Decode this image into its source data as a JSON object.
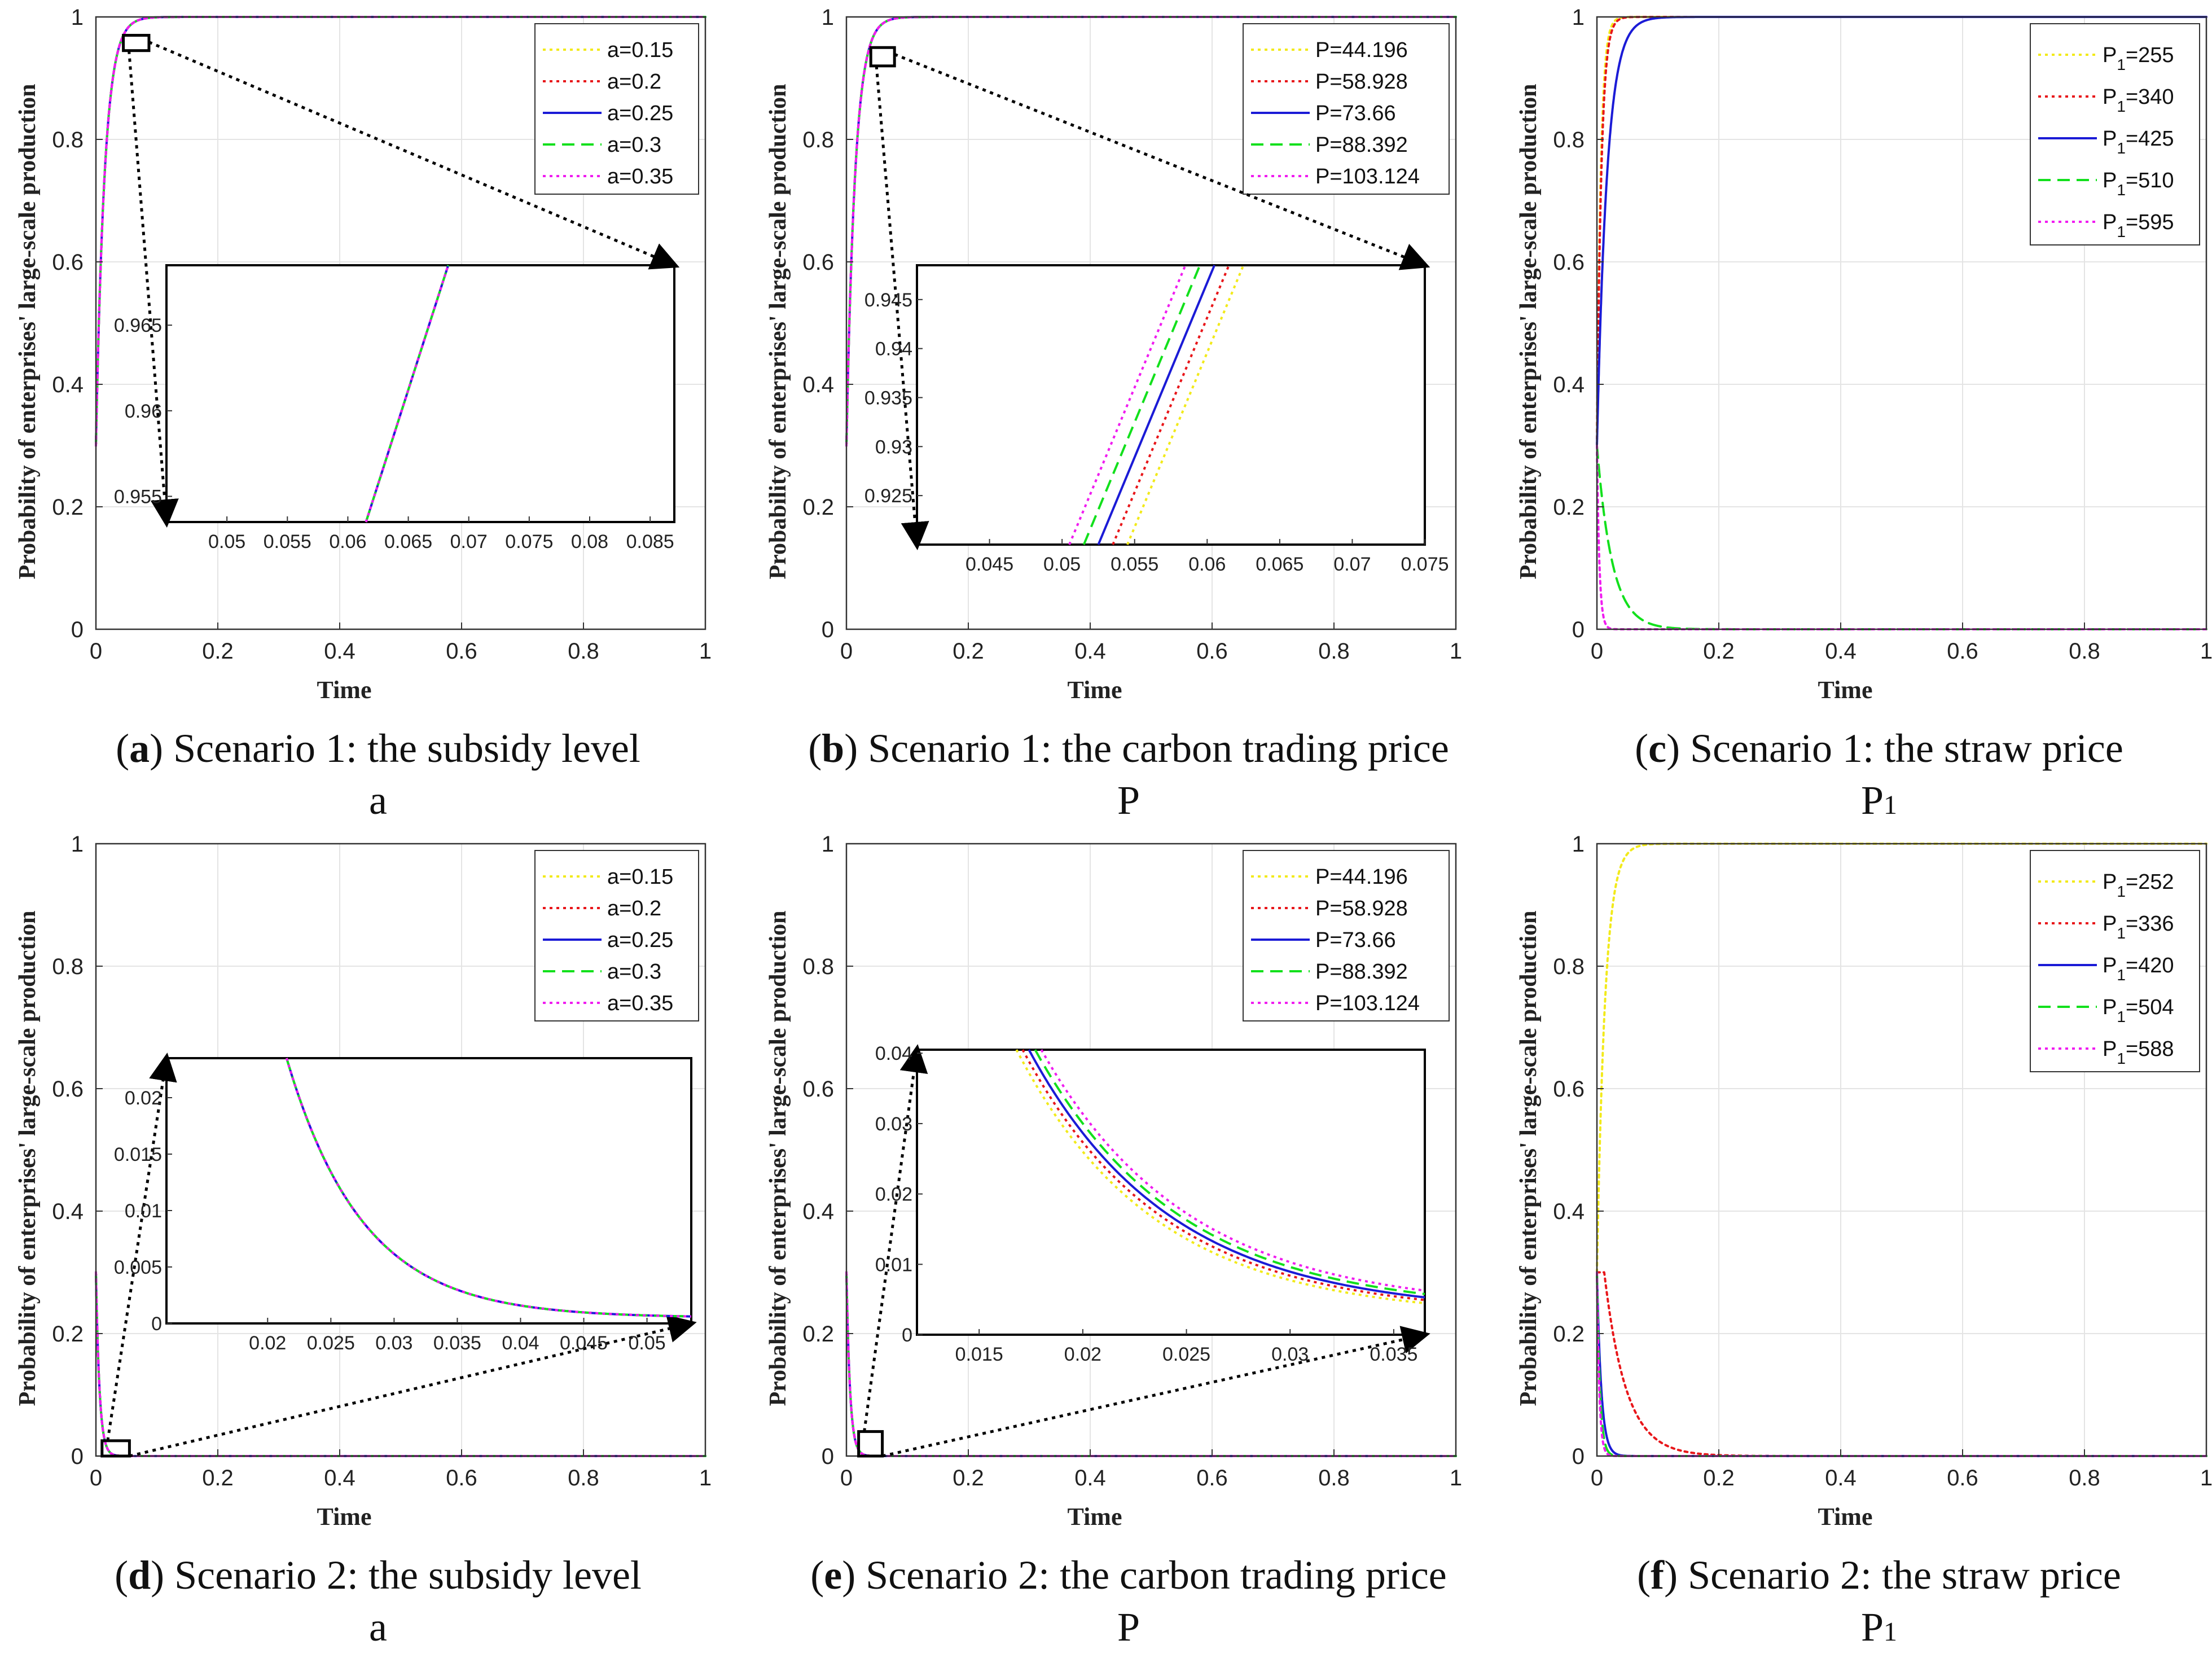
{
  "chart_data": [
    {
      "id": "a",
      "type": "line",
      "caption": {
        "letter": "a",
        "text": "Scenario 1: the subsidy level",
        "symbol": "a"
      },
      "xlabel": "Time",
      "ylabel": "Probability of enterprises' large-scale production",
      "xlim": [
        0,
        1
      ],
      "ylim": [
        0,
        1
      ],
      "xticks": [
        "0",
        "0.2",
        "0.4",
        "0.6",
        "0.8",
        "1"
      ],
      "yticks": [
        "0",
        "0.2",
        "0.4",
        "0.6",
        "0.8",
        "1"
      ],
      "legend_position": "top-right",
      "series": [
        {
          "name": "a=0.15",
          "label": "a=0.15",
          "style": "yellow-dot",
          "trend": "rise"
        },
        {
          "name": "a=0.2",
          "label": "a=0.2",
          "style": "red-dot",
          "trend": "rise"
        },
        {
          "name": "a=0.25",
          "label": "a=0.25",
          "style": "blue-solid",
          "trend": "rise"
        },
        {
          "name": "a=0.3",
          "label": "a=0.3",
          "style": "green-dash",
          "trend": "rise"
        },
        {
          "name": "a=0.35",
          "label": "a=0.35",
          "style": "magenta-dot",
          "trend": "rise"
        }
      ],
      "inset": {
        "xlim": [
          0.045,
          0.087
        ],
        "ylim": [
          0.9535,
          0.9685
        ],
        "xticks": [
          "0.05",
          "0.055",
          "0.06",
          "0.065",
          "0.07",
          "0.075",
          "0.08",
          "0.085"
        ],
        "yticks": [
          "0.955",
          "0.96",
          "0.965"
        ],
        "zoom_x": [
          0.045,
          0.087
        ],
        "zoom_y": [
          0.945,
          0.97
        ],
        "lines": [
          [
            0.0615,
            0.9535,
            0.0683,
            0.9685
          ]
        ]
      }
    },
    {
      "id": "b",
      "type": "line",
      "caption": {
        "letter": "b",
        "text": "Scenario 1: the carbon trading price",
        "symbol": "P"
      },
      "xlabel": "Time",
      "ylabel": "Probability of enterprises' large-scale production",
      "xlim": [
        0,
        1
      ],
      "ylim": [
        0,
        1
      ],
      "xticks": [
        "0",
        "0.2",
        "0.4",
        "0.6",
        "0.8",
        "1"
      ],
      "yticks": [
        "0",
        "0.2",
        "0.4",
        "0.6",
        "0.8",
        "1"
      ],
      "legend_position": "top-right",
      "series": [
        {
          "name": "P=44.196",
          "label": "P=44.196",
          "style": "yellow-dot",
          "trend": "rise"
        },
        {
          "name": "P=58.928",
          "label": "P=58.928",
          "style": "red-dot",
          "trend": "rise"
        },
        {
          "name": "P=73.66",
          "label": "P=73.66",
          "style": "blue-solid",
          "trend": "rise"
        },
        {
          "name": "P=88.392",
          "label": "P=88.392",
          "style": "green-dash",
          "trend": "rise"
        },
        {
          "name": "P=103.124",
          "label": "P=103.124",
          "style": "magenta-dot",
          "trend": "rise"
        }
      ],
      "inset": {
        "xlim": [
          0.04,
          0.075
        ],
        "ylim": [
          0.92,
          0.9485
        ],
        "xticks": [
          "0.045",
          "0.05",
          "0.055",
          "0.06",
          "0.065",
          "0.07",
          "0.075"
        ],
        "yticks": [
          "0.925",
          "0.93",
          "0.935",
          "0.94",
          "0.945"
        ],
        "zoom_x": [
          0.04,
          0.075
        ],
        "zoom_y": [
          0.92,
          0.95
        ],
        "lines": [
          [
            0.0545,
            0.92,
            0.0625,
            0.9485
          ],
          [
            0.0535,
            0.92,
            0.0615,
            0.9485
          ],
          [
            0.0525,
            0.92,
            0.0605,
            0.9485
          ],
          [
            0.0515,
            0.92,
            0.0595,
            0.9485
          ],
          [
            0.0505,
            0.92,
            0.0585,
            0.9485
          ]
        ]
      }
    },
    {
      "id": "c",
      "type": "line",
      "caption": {
        "letter": "c",
        "text": "Scenario 1: the straw price",
        "symbol": "P",
        "symbol_sub": "1"
      },
      "xlabel": "Time",
      "ylabel": "Probability of enterprises' large-scale production",
      "xlim": [
        0,
        1
      ],
      "ylim": [
        0,
        1
      ],
      "xticks": [
        "0",
        "0.2",
        "0.4",
        "0.6",
        "0.8",
        "1"
      ],
      "yticks": [
        "0",
        "0.2",
        "0.4",
        "0.6",
        "0.8",
        "1"
      ],
      "legend_position": "top-right",
      "series": [
        {
          "name": "P1=255",
          "label": "P",
          "sub": "1",
          "value": "=255",
          "style": "yellow-dot",
          "trend": "rise",
          "rate": 160
        },
        {
          "name": "P1=340",
          "label": "P",
          "sub": "1",
          "value": "=340",
          "style": "red-dot",
          "trend": "rise",
          "rate": 140
        },
        {
          "name": "P1=425",
          "label": "P",
          "sub": "1",
          "value": "=425",
          "style": "blue-solid",
          "trend": "rise",
          "rate": 60
        },
        {
          "name": "P1=510",
          "label": "P",
          "sub": "1",
          "value": "=510",
          "style": "green-dash",
          "trend": "decay",
          "rate": 40
        },
        {
          "name": "P1=595",
          "label": "P",
          "sub": "1",
          "value": "=595",
          "style": "magenta-dot",
          "trend": "decay",
          "rate": 250
        }
      ]
    },
    {
      "id": "d",
      "type": "line",
      "caption": {
        "letter": "d",
        "text": "Scenario 2: the subsidy level",
        "symbol": "a"
      },
      "xlabel": "Time",
      "ylabel": "Probability of enterprises' large-scale production",
      "xlim": [
        0,
        1
      ],
      "ylim": [
        0,
        1
      ],
      "xticks": [
        "0",
        "0.2",
        "0.4",
        "0.6",
        "0.8",
        "1"
      ],
      "yticks": [
        "0",
        "0.2",
        "0.4",
        "0.6",
        "0.8",
        "1"
      ],
      "legend_position": "top-right",
      "series": [
        {
          "name": "a=0.15",
          "label": "a=0.15",
          "style": "yellow-dot",
          "trend": "decay"
        },
        {
          "name": "a=0.2",
          "label": "a=0.2",
          "style": "red-dot",
          "trend": "decay"
        },
        {
          "name": "a=0.25",
          "label": "a=0.25",
          "style": "blue-solid",
          "trend": "decay"
        },
        {
          "name": "a=0.3",
          "label": "a=0.3",
          "style": "green-dash",
          "trend": "decay"
        },
        {
          "name": "a=0.35",
          "label": "a=0.35",
          "style": "magenta-dot",
          "trend": "decay"
        }
      ],
      "inset": {
        "xlim": [
          0.012,
          0.0535
        ],
        "ylim": [
          0,
          0.0235
        ],
        "xticks": [
          "0.02",
          "0.025",
          "0.03",
          "0.035",
          "0.04",
          "0.045",
          "0.05"
        ],
        "yticks": [
          "0",
          "0.005",
          "0.01",
          "0.015",
          "0.02"
        ],
        "zoom_x": [
          0.01,
          0.055
        ],
        "zoom_y": [
          0,
          0.025
        ],
        "curves": [
          {
            "x0": 0.0215,
            "y0": 0.0235,
            "k": 165,
            "c": 0.0005,
            "x1": 0.0535
          }
        ]
      }
    },
    {
      "id": "e",
      "type": "line",
      "caption": {
        "letter": "e",
        "text": "Scenario 2: the carbon trading price",
        "symbol": "P"
      },
      "xlabel": "Time",
      "ylabel": "Probability of enterprises' large-scale production",
      "xlim": [
        0,
        1
      ],
      "ylim": [
        0,
        1
      ],
      "xticks": [
        "0",
        "0.2",
        "0.4",
        "0.6",
        "0.8",
        "1"
      ],
      "yticks": [
        "0",
        "0.2",
        "0.4",
        "0.6",
        "0.8",
        "1"
      ],
      "legend_position": "top-right",
      "series": [
        {
          "name": "P=44.196",
          "label": "P=44.196",
          "style": "yellow-dot",
          "trend": "decay"
        },
        {
          "name": "P=58.928",
          "label": "P=58.928",
          "style": "red-dot",
          "trend": "decay"
        },
        {
          "name": "P=73.66",
          "label": "P=73.66",
          "style": "blue-solid",
          "trend": "decay"
        },
        {
          "name": "P=88.392",
          "label": "P=88.392",
          "style": "green-dash",
          "trend": "decay"
        },
        {
          "name": "P=103.124",
          "label": "P=103.124",
          "style": "magenta-dot",
          "trend": "decay"
        }
      ],
      "inset": {
        "xlim": [
          0.012,
          0.0365
        ],
        "ylim": [
          0,
          0.0405
        ],
        "xticks": [
          "0.015",
          "0.02",
          "0.025",
          "0.03",
          "0.035"
        ],
        "yticks": [
          "0",
          "0.01",
          "0.02",
          "0.03",
          "0.04"
        ],
        "zoom_x": [
          0.02,
          0.035
        ],
        "zoom_y": [
          0,
          0.04
        ],
        "curves": [
          {
            "x0": 0.0168,
            "y0": 0.0405,
            "k": 150,
            "c": 0.0025,
            "x1": 0.0365
          },
          {
            "x0": 0.0171,
            "y0": 0.0405,
            "k": 148,
            "c": 0.0028,
            "x1": 0.0365
          },
          {
            "x0": 0.0174,
            "y0": 0.0405,
            "k": 146,
            "c": 0.003,
            "x1": 0.0365
          },
          {
            "x0": 0.0177,
            "y0": 0.0405,
            "k": 144,
            "c": 0.0033,
            "x1": 0.0365
          },
          {
            "x0": 0.018,
            "y0": 0.0405,
            "k": 142,
            "c": 0.0036,
            "x1": 0.0365
          }
        ]
      }
    },
    {
      "id": "f",
      "type": "line",
      "caption": {
        "letter": "f",
        "text": "Scenario 2: the straw price",
        "symbol": "P",
        "symbol_sub": "1"
      },
      "xlabel": "Time",
      "ylabel": "Probability of enterprises' large-scale production",
      "xlim": [
        0,
        1
      ],
      "ylim": [
        0,
        1
      ],
      "xticks": [
        "0",
        "0.2",
        "0.4",
        "0.6",
        "0.8",
        "1"
      ],
      "yticks": [
        "0",
        "0.2",
        "0.4",
        "0.6",
        "0.8",
        "1"
      ],
      "legend_position": "top-right",
      "series": [
        {
          "name": "P1=252",
          "label": "P",
          "sub": "1",
          "value": "=252",
          "style": "yellow-dot",
          "trend": "rise",
          "rate": 75
        },
        {
          "name": "P1=336",
          "label": "P",
          "sub": "1",
          "value": "=336",
          "style": "red-dot",
          "trend": "hump",
          "peak": 0.3,
          "rate": 28
        },
        {
          "name": "P1=420",
          "label": "P",
          "sub": "1",
          "value": "=420",
          "style": "blue-solid",
          "trend": "decay",
          "rate": 140
        },
        {
          "name": "P1=504",
          "label": "P",
          "sub": "1",
          "value": "=504",
          "style": "green-dash",
          "trend": "decay",
          "rate": 200
        },
        {
          "name": "P1=588",
          "label": "P",
          "sub": "1",
          "value": "=588",
          "style": "magenta-dot",
          "trend": "decay",
          "rate": 260
        }
      ]
    }
  ],
  "styles": {
    "yellow-dot": {
      "color": "#f2ea1a",
      "dash": "5 7"
    },
    "red-dot": {
      "color": "#e8161a",
      "dash": "5 7"
    },
    "blue-solid": {
      "color": "#1b1bd6",
      "dash": ""
    },
    "green-dash": {
      "color": "#12e01c",
      "dash": "22 12"
    },
    "magenta-dot": {
      "color": "#f01cf0",
      "dash": "5 7"
    }
  }
}
